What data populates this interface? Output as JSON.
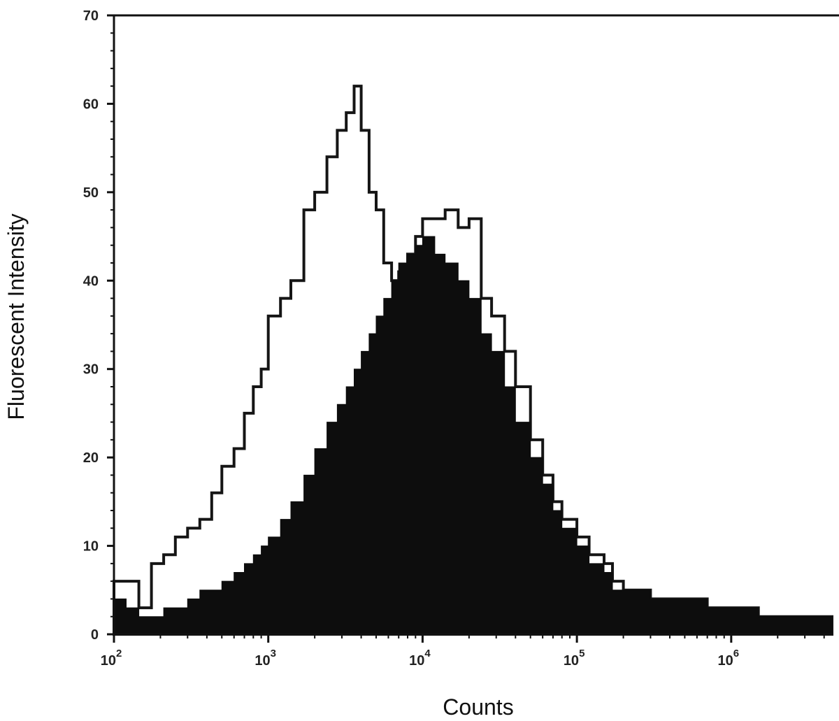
{
  "chart_data": {
    "type": "area",
    "title": "",
    "xlabel": "Counts",
    "ylabel": "Fluorescent Intensity",
    "x_scale": "log",
    "xlim": [
      100,
      4500000
    ],
    "ylim": [
      0,
      70
    ],
    "y_ticks": [
      0,
      10,
      20,
      30,
      40,
      50,
      60,
      70
    ],
    "x_ticks": [
      {
        "value": 100,
        "base": "10",
        "exp": "2"
      },
      {
        "value": 1000,
        "base": "10",
        "exp": "3"
      },
      {
        "value": 10000,
        "base": "10",
        "exp": "4"
      },
      {
        "value": 100000,
        "base": "10",
        "exp": "5"
      },
      {
        "value": 1000000,
        "base": "10",
        "exp": "6"
      }
    ],
    "grid": false,
    "legend": "none",
    "colors": {
      "filled_histogram": "#0d0d0d",
      "outline_histogram": "#151515",
      "axis": "#111111"
    },
    "series": [
      {
        "style": "outline",
        "x": [
          100,
          120,
          145,
          175,
          210,
          250,
          300,
          360,
          430,
          500,
          600,
          700,
          800,
          900,
          1000,
          1200,
          1400,
          1700,
          2000,
          2400,
          2800,
          3200,
          3600,
          4000,
          4500,
          5000,
          5600,
          6300,
          7000,
          8000,
          9000,
          10000,
          12000,
          14000,
          17000,
          20000,
          24000,
          28000,
          34000,
          40000,
          50000,
          60000,
          70000,
          80000,
          100000,
          120000,
          150000,
          170000,
          200000,
          250000,
          300000,
          400000,
          500000,
          700000,
          1000000,
          1500000,
          2000000,
          3000000,
          4500000
        ],
        "values": [
          6,
          6,
          3,
          8,
          9,
          11,
          12,
          13,
          16,
          19,
          21,
          25,
          28,
          30,
          36,
          38,
          40,
          48,
          50,
          54,
          57,
          59,
          62,
          57,
          50,
          48,
          42,
          40,
          41,
          43,
          45,
          47,
          47,
          48,
          46,
          47,
          38,
          36,
          32,
          28,
          22,
          18,
          15,
          13,
          11,
          9,
          8,
          6,
          5,
          5,
          4,
          4,
          4,
          3,
          3,
          2,
          2,
          2,
          1
        ]
      },
      {
        "style": "filled",
        "x": [
          100,
          120,
          145,
          175,
          210,
          250,
          300,
          360,
          430,
          500,
          600,
          700,
          800,
          900,
          1000,
          1200,
          1400,
          1700,
          2000,
          2400,
          2800,
          3200,
          3600,
          4000,
          4500,
          5000,
          5600,
          6300,
          7000,
          8000,
          9000,
          10000,
          12000,
          14000,
          17000,
          20000,
          24000,
          28000,
          34000,
          40000,
          50000,
          60000,
          70000,
          80000,
          100000,
          120000,
          150000,
          170000,
          200000,
          250000,
          300000,
          400000,
          500000,
          700000,
          1000000,
          1500000,
          2000000,
          3000000,
          4500000
        ],
        "values": [
          4,
          3,
          2,
          2,
          3,
          3,
          4,
          5,
          5,
          6,
          7,
          8,
          9,
          10,
          11,
          13,
          15,
          18,
          21,
          24,
          26,
          28,
          30,
          32,
          34,
          36,
          38,
          40,
          42,
          43,
          44,
          45,
          43,
          42,
          40,
          38,
          34,
          32,
          28,
          24,
          20,
          17,
          14,
          12,
          10,
          8,
          7,
          5,
          5,
          5,
          4,
          4,
          4,
          3,
          3,
          2,
          2,
          2,
          1
        ]
      }
    ]
  }
}
